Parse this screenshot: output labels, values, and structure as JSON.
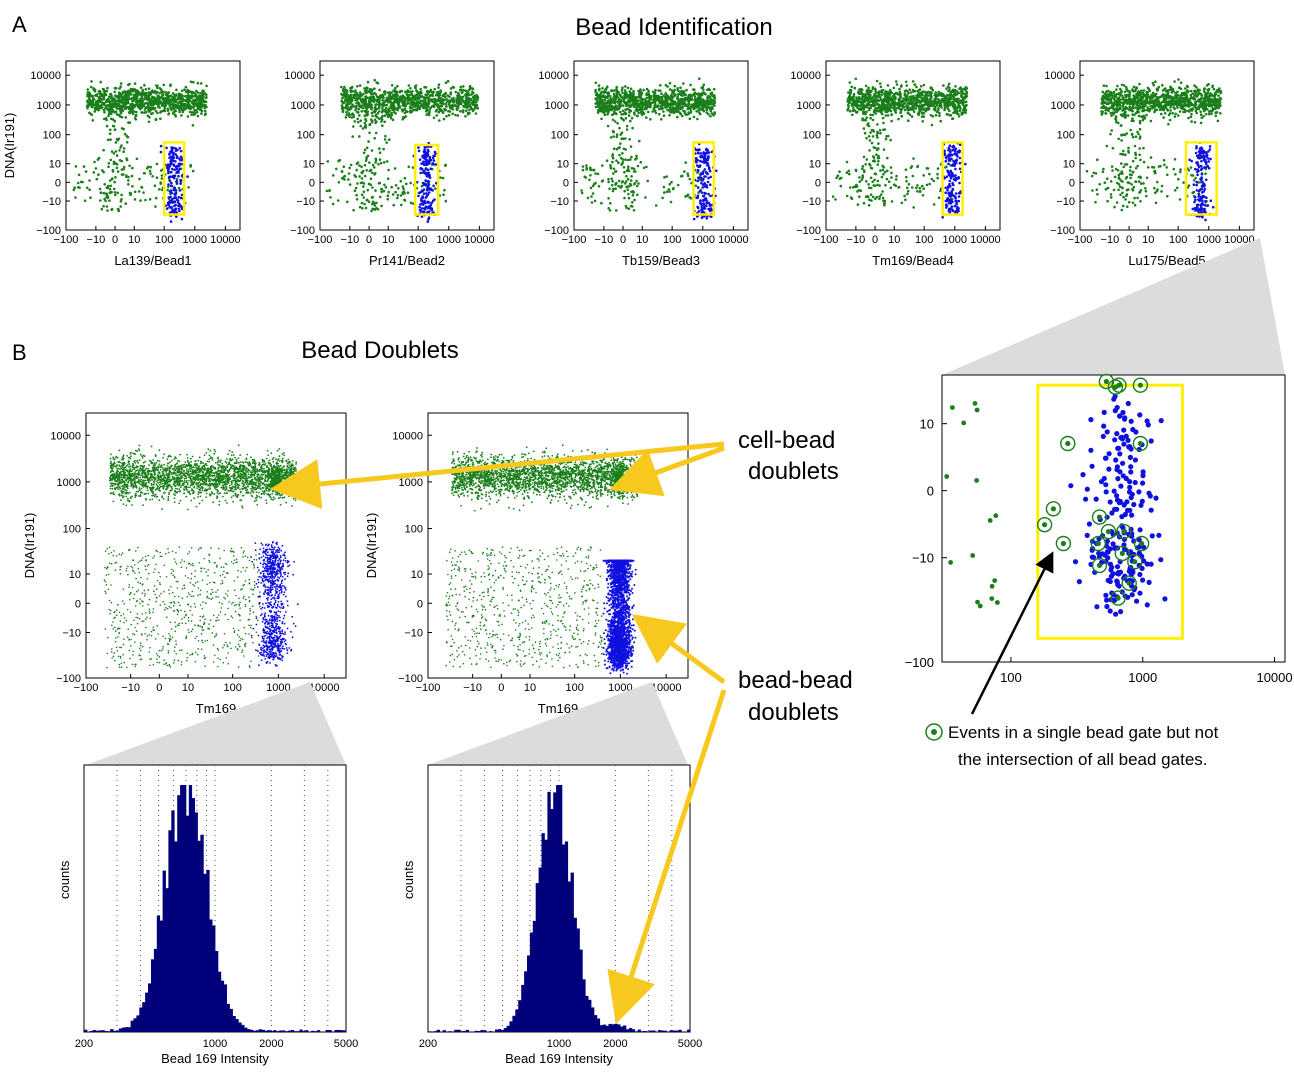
{
  "panel_a": {
    "letter": "A",
    "title": "Bead Identification",
    "y_label": "DNA(Ir191)",
    "y_ticks": [
      "10000",
      "1000",
      "100",
      "10",
      "0",
      "−10",
      "−100"
    ],
    "x_ticks": [
      "−100",
      "−10",
      "0",
      "10",
      "100",
      "1000",
      "10000"
    ],
    "plots": [
      {
        "x_label": "La139/Bead1",
        "gate_x": [
          100,
          450
        ],
        "gate_y": [
          -30,
          55
        ]
      },
      {
        "x_label": "Pr141/Bead2",
        "gate_x": [
          80,
          450
        ],
        "gate_y": [
          -30,
          45
        ]
      },
      {
        "x_label": "Tb159/Bead3",
        "gate_x": [
          500,
          2300
        ],
        "gate_y": [
          -30,
          55
        ]
      },
      {
        "x_label": "Tm169/Bead4",
        "gate_x": [
          400,
          1800
        ],
        "gate_y": [
          -30,
          55
        ]
      },
      {
        "x_label": "Lu175/Bead5",
        "gate_x": [
          180,
          1800
        ],
        "gate_y": [
          -30,
          55
        ]
      }
    ]
  },
  "panel_b": {
    "letter": "B",
    "title": "Bead Doublets",
    "scatter_y_label": "DNA(Ir191)",
    "scatter_x_label": "Tm169",
    "scatter_y_ticks": [
      "10000",
      "1000",
      "100",
      "10",
      "0",
      "−10",
      "−100"
    ],
    "scatter_x_ticks": [
      "−100",
      "−10",
      "0",
      "10",
      "100",
      "1000",
      "10000"
    ],
    "hist_x_label": "Bead 169 Intensity",
    "hist_y_label": "counts",
    "hist_x_ticks": [
      "200",
      "1000",
      "2000",
      "5000"
    ],
    "annotation_cell_bead": [
      "cell-bead",
      "doublets"
    ],
    "annotation_bead_bead": [
      "bead-bead",
      "doublets"
    ]
  },
  "zoom": {
    "y_ticks": [
      "10",
      "0",
      "−10",
      "−100"
    ],
    "x_ticks": [
      "100",
      "1000",
      "10000"
    ],
    "legend_line1": "Events in a single bead gate but not",
    "legend_line2": "the intersection of all bead gates."
  },
  "colors": {
    "cells": "#1a7f1a",
    "beads": "#1010e0",
    "gate": "#ffef00",
    "arrow": "#f7c81e",
    "histogram": "#00007a"
  },
  "chart_data": [
    {
      "type": "scatter",
      "title": "Bead Identification",
      "xlabel": "La139/Bead1",
      "ylabel": "DNA(Ir191)",
      "scale": "arcsinh",
      "xlim": [
        -100,
        30000
      ],
      "ylim": [
        -100,
        30000
      ],
      "gate": {
        "x": [
          100,
          450
        ],
        "y": [
          -30,
          55
        ]
      }
    },
    {
      "type": "scatter",
      "xlabel": "Pr141/Bead2",
      "ylabel": "DNA(Ir191)",
      "scale": "arcsinh",
      "xlim": [
        -100,
        30000
      ],
      "ylim": [
        -100,
        30000
      ],
      "gate": {
        "x": [
          80,
          450
        ],
        "y": [
          -30,
          45
        ]
      }
    },
    {
      "type": "scatter",
      "xlabel": "Tb159/Bead3",
      "ylabel": "DNA(Ir191)",
      "scale": "arcsinh",
      "xlim": [
        -100,
        30000
      ],
      "ylim": [
        -100,
        30000
      ],
      "gate": {
        "x": [
          500,
          2300
        ],
        "y": [
          -30,
          55
        ]
      }
    },
    {
      "type": "scatter",
      "xlabel": "Tm169/Bead4",
      "ylabel": "DNA(Ir191)",
      "scale": "arcsinh",
      "xlim": [
        -100,
        30000
      ],
      "ylim": [
        -100,
        30000
      ],
      "gate": {
        "x": [
          400,
          1800
        ],
        "y": [
          -30,
          55
        ]
      }
    },
    {
      "type": "scatter",
      "xlabel": "Lu175/Bead5",
      "ylabel": "DNA(Ir191)",
      "scale": "arcsinh",
      "xlim": [
        -100,
        30000
      ],
      "ylim": [
        -100,
        30000
      ],
      "gate": {
        "x": [
          180,
          1800
        ],
        "y": [
          -30,
          55
        ]
      }
    },
    {
      "type": "scatter",
      "title": "Bead Doublets",
      "xlabel": "Tm169",
      "ylabel": "DNA(Ir191)",
      "scale": "arcsinh",
      "xlim": [
        -100,
        30000
      ],
      "ylim": [
        -100,
        30000
      ]
    },
    {
      "type": "scatter",
      "xlabel": "Tm169",
      "ylabel": "DNA(Ir191)",
      "scale": "arcsinh",
      "xlim": [
        -100,
        30000
      ],
      "ylim": [
        -100,
        30000
      ]
    },
    {
      "type": "bar",
      "xlabel": "Bead 169 Intensity",
      "ylabel": "counts",
      "xscale": "log",
      "xlim": [
        200,
        5000
      ],
      "peak_x": 700
    },
    {
      "type": "bar",
      "xlabel": "Bead 169 Intensity",
      "ylabel": "counts",
      "xscale": "log",
      "xlim": [
        200,
        5000
      ],
      "peak_x": 950,
      "secondary_peak_x": 2000
    },
    {
      "type": "scatter",
      "xlabel": "",
      "ylabel": "",
      "scale": "arcsinh",
      "xlim": [
        30,
        12000
      ],
      "ylim": [
        -100,
        30
      ],
      "gate": {
        "x": [
          160,
          2000
        ],
        "y": [
          -60,
          24
        ]
      }
    }
  ]
}
